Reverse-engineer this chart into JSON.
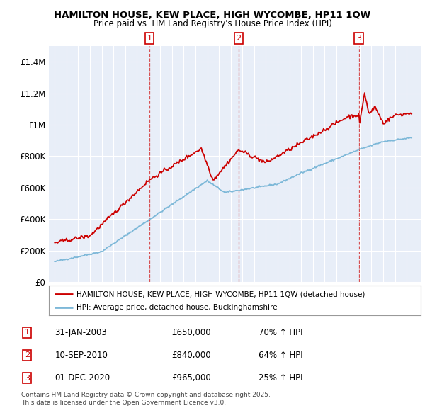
{
  "title": "HAMILTON HOUSE, KEW PLACE, HIGH WYCOMBE, HP11 1QW",
  "subtitle": "Price paid vs. HM Land Registry's House Price Index (HPI)",
  "legend_line1": "HAMILTON HOUSE, KEW PLACE, HIGH WYCOMBE, HP11 1QW (detached house)",
  "legend_line2": "HPI: Average price, detached house, Buckinghamshire",
  "footer": "Contains HM Land Registry data © Crown copyright and database right 2025.\nThis data is licensed under the Open Government Licence v3.0.",
  "transactions": [
    {
      "num": "1",
      "date": "31-JAN-2003",
      "price": "£650,000",
      "change": "70% ↑ HPI",
      "year": 2003.08
    },
    {
      "num": "2",
      "date": "10-SEP-2010",
      "price": "£840,000",
      "change": "64% ↑ HPI",
      "year": 2010.69
    },
    {
      "num": "3",
      "date": "01-DEC-2020",
      "price": "£965,000",
      "change": "25% ↑ HPI",
      "year": 2020.92
    }
  ],
  "red_color": "#cc0000",
  "blue_color": "#7db8d8",
  "background_color": "#e8eef8",
  "grid_color": "#ffffff",
  "ylim_max": 1500000,
  "xlim_start": 1994.5,
  "xlim_end": 2026.2,
  "yticks": [
    0,
    200000,
    400000,
    600000,
    800000,
    1000000,
    1200000,
    1400000
  ]
}
